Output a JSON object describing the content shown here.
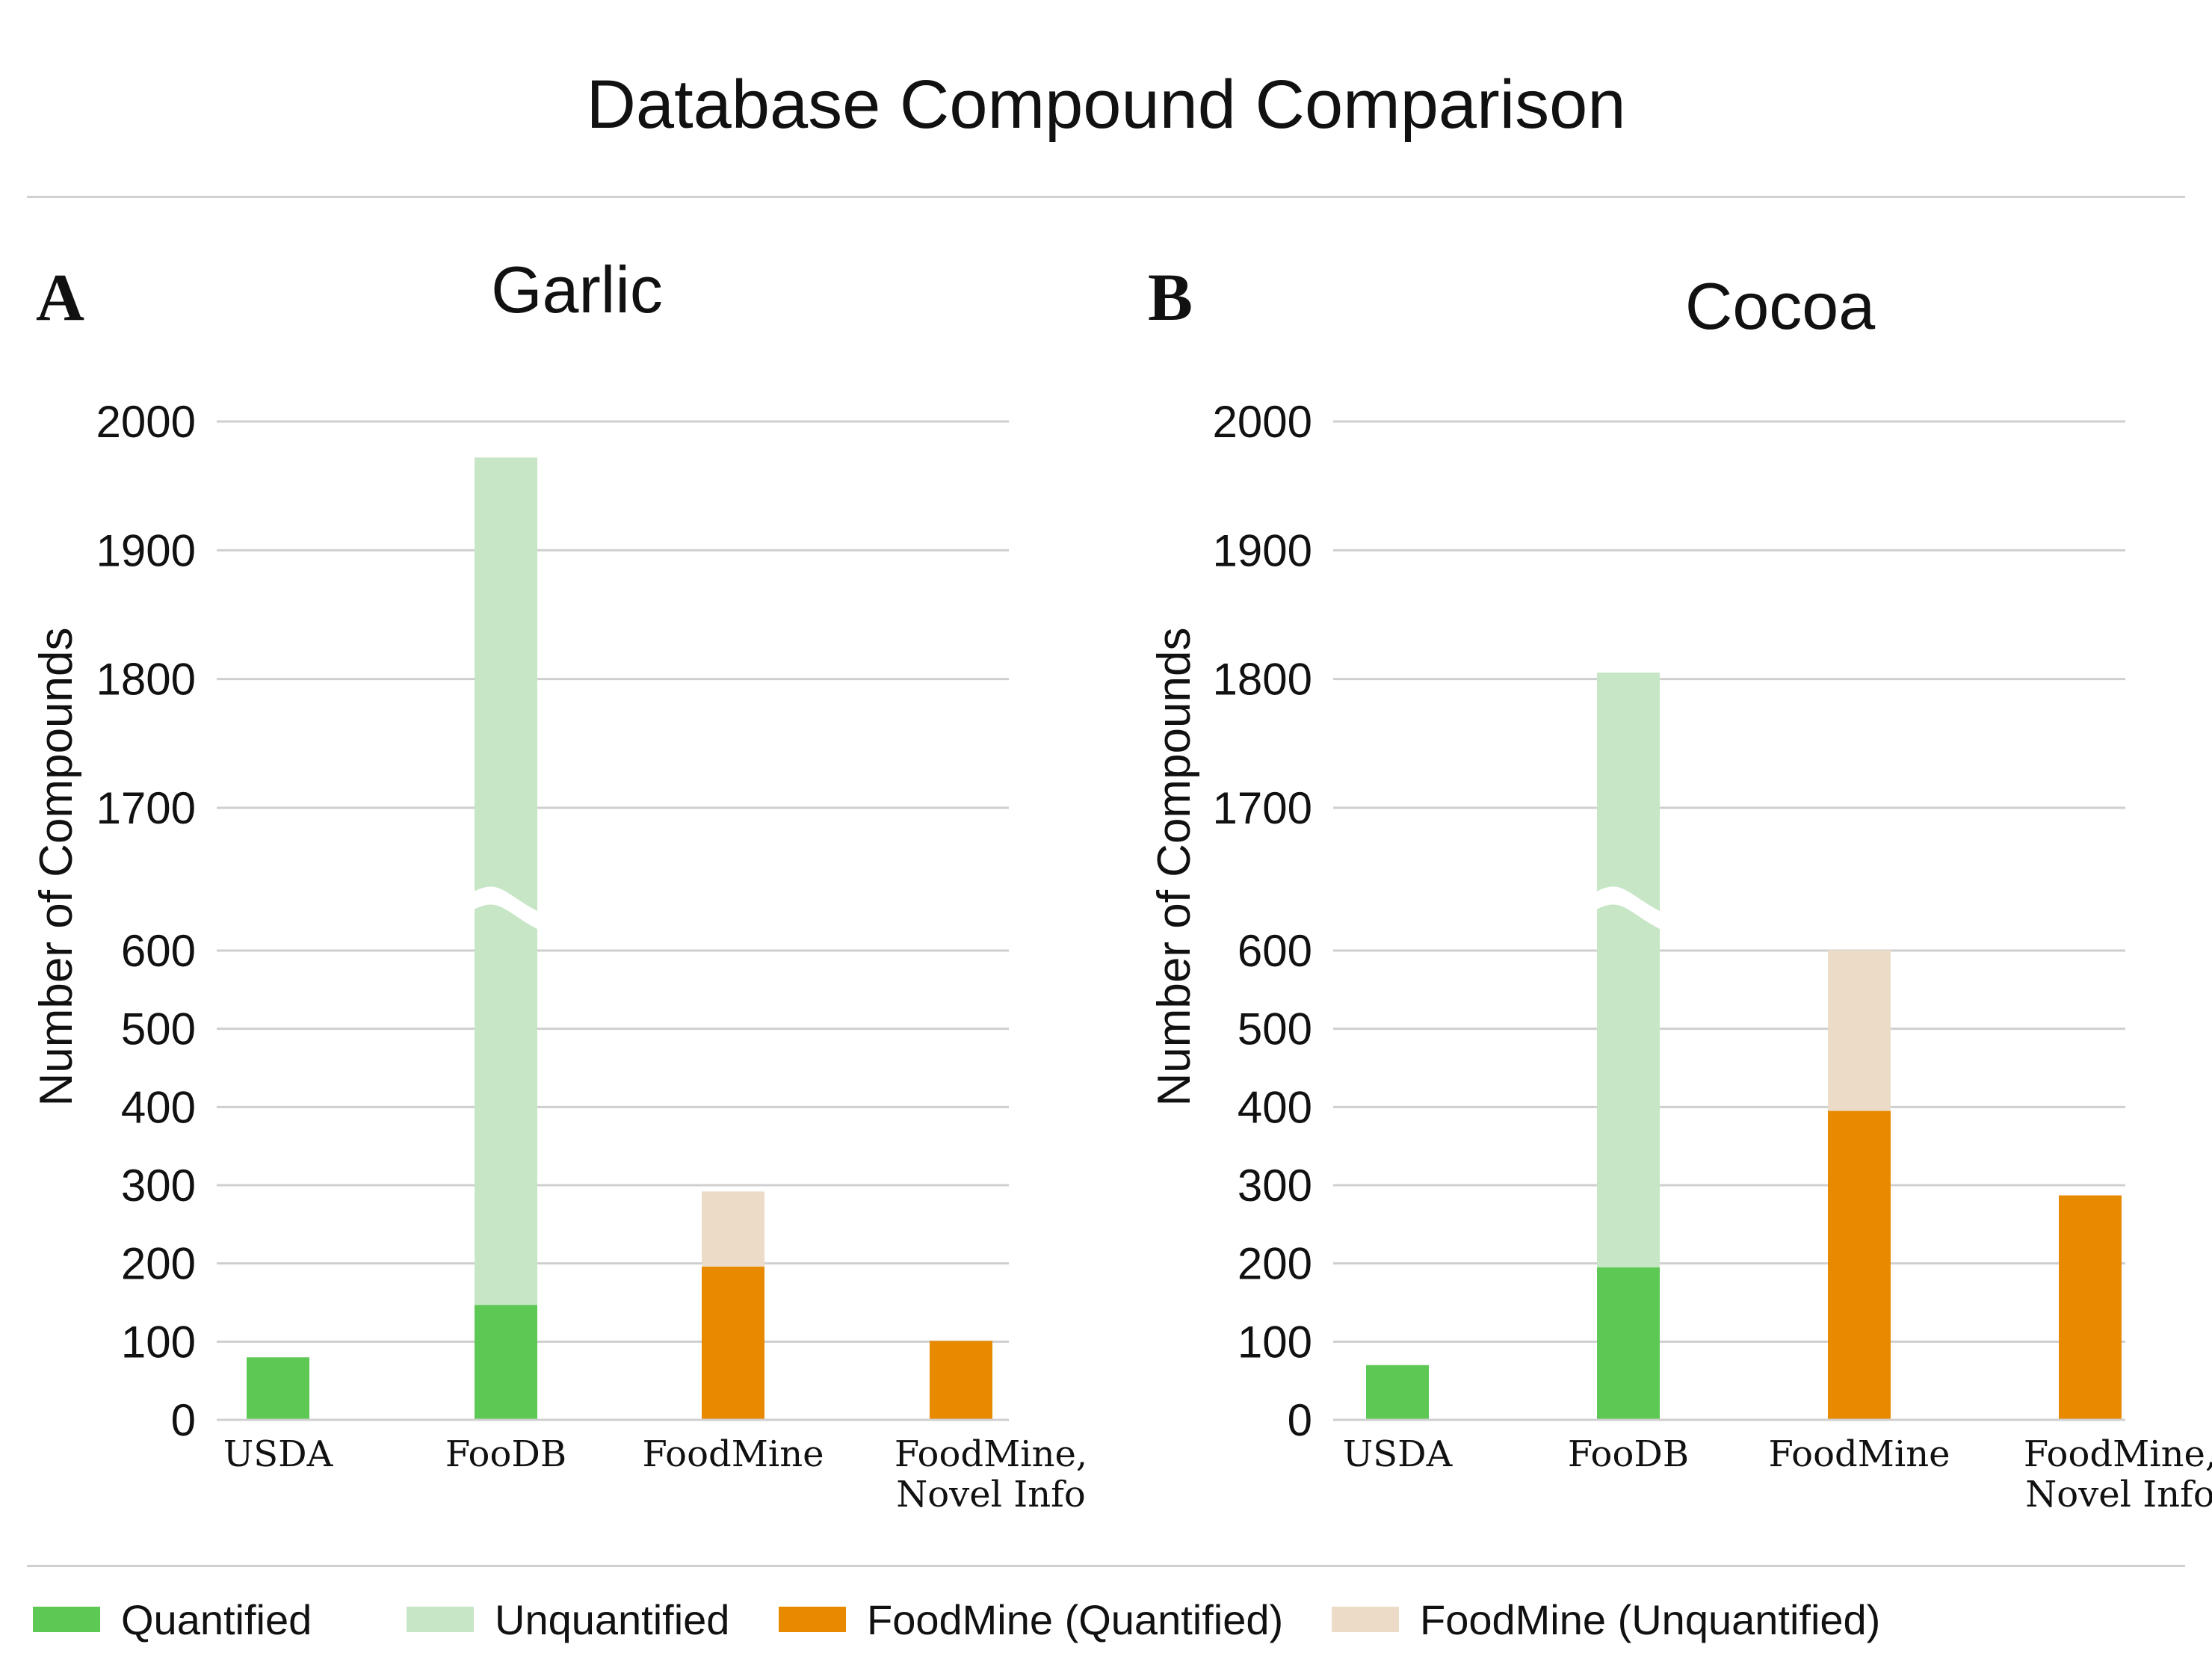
{
  "title": "Database Compound Comparison",
  "colors": {
    "quantified": "#5dc954",
    "unquantified": "#c7e6c6",
    "foodmine_quantified": "#e88a00",
    "foodmine_unquantified": "#ecdcc7"
  },
  "legend": [
    {
      "label": "Quantified",
      "color": "#5dc954"
    },
    {
      "label": "Unquantified",
      "color": "#c7e6c6"
    },
    {
      "label": "FoodMine (Quantified)",
      "color": "#e88a00"
    },
    {
      "label": "FoodMine (Unquantified)",
      "color": "#ecdcc7"
    }
  ],
  "chart_data": [
    {
      "type": "bar",
      "stacked": true,
      "panel": "A",
      "title": "Garlic",
      "ylabel": "Number of Compounds",
      "axis_break": {
        "lower_range": [
          0,
          600
        ],
        "upper_range": [
          1700,
          2000
        ]
      },
      "yticks": [
        0,
        100,
        200,
        300,
        400,
        500,
        600,
        1700,
        1800,
        1900,
        2000
      ],
      "categories": [
        [
          "USDA"
        ],
        [
          "FooDB"
        ],
        [
          "FoodMine"
        ],
        [
          "FoodMine,",
          "Novel Info"
        ]
      ],
      "bars": [
        {
          "segments": [
            {
              "value": 80,
              "color": "#5dc954"
            }
          ]
        },
        {
          "segments": [
            {
              "value": 147,
              "color": "#5dc954"
            },
            {
              "value": 1825,
              "color": "#c7e6c6"
            }
          ]
        },
        {
          "segments": [
            {
              "value": 196,
              "color": "#e88a00"
            },
            {
              "value": 96,
              "color": "#ecdcc7"
            }
          ]
        },
        {
          "segments": [
            {
              "value": 101,
              "color": "#e88a00"
            }
          ]
        }
      ]
    },
    {
      "type": "bar",
      "stacked": true,
      "panel": "B",
      "title": "Cocoa",
      "ylabel": "Number of Compounds",
      "axis_break": {
        "lower_range": [
          0,
          600
        ],
        "upper_range": [
          1700,
          2000
        ]
      },
      "yticks": [
        0,
        100,
        200,
        300,
        400,
        500,
        600,
        1700,
        1800,
        1900,
        2000
      ],
      "categories": [
        [
          "USDA"
        ],
        [
          "FooDB"
        ],
        [
          "FoodMine"
        ],
        [
          "FoodMine,",
          "Novel Info"
        ]
      ],
      "bars": [
        {
          "segments": [
            {
              "value": 70,
              "color": "#5dc954"
            }
          ]
        },
        {
          "segments": [
            {
              "value": 195,
              "color": "#5dc954"
            },
            {
              "value": 1610,
              "color": "#c7e6c6"
            }
          ]
        },
        {
          "segments": [
            {
              "value": 395,
              "color": "#e88a00"
            },
            {
              "value": 208,
              "color": "#ecdcc7"
            }
          ]
        },
        {
          "segments": [
            {
              "value": 287,
              "color": "#e88a00"
            }
          ]
        }
      ]
    }
  ]
}
